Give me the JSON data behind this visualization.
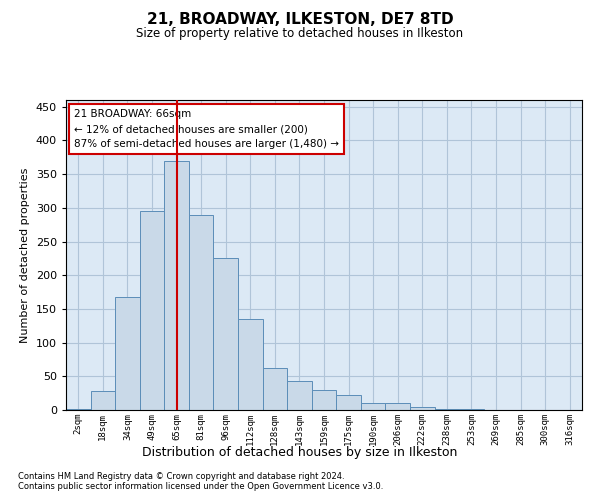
{
  "title1": "21, BROADWAY, ILKESTON, DE7 8TD",
  "title2": "Size of property relative to detached houses in Ilkeston",
  "xlabel": "Distribution of detached houses by size in Ilkeston",
  "ylabel": "Number of detached properties",
  "footnote1": "Contains HM Land Registry data © Crown copyright and database right 2024.",
  "footnote2": "Contains public sector information licensed under the Open Government Licence v3.0.",
  "annotation_title": "21 BROADWAY: 66sqm",
  "annotation_line1": "← 12% of detached houses are smaller (200)",
  "annotation_line2": "87% of semi-detached houses are larger (1,480) →",
  "bar_labels": [
    "2sqm",
    "18sqm",
    "34sqm",
    "49sqm",
    "65sqm",
    "81sqm",
    "96sqm",
    "112sqm",
    "128sqm",
    "143sqm",
    "159sqm",
    "175sqm",
    "190sqm",
    "206sqm",
    "222sqm",
    "238sqm",
    "253sqm",
    "269sqm",
    "285sqm",
    "300sqm",
    "316sqm"
  ],
  "bar_values": [
    2,
    28,
    168,
    295,
    370,
    290,
    225,
    135,
    62,
    43,
    30,
    22,
    10,
    11,
    5,
    2,
    1,
    0,
    0,
    0,
    0
  ],
  "bar_color": "#c9d9e8",
  "bar_edge_color": "#5b8db8",
  "grid_color": "#b0c4d8",
  "background_color": "#dce9f5",
  "red_line_index": 4,
  "annotation_box_color": "#ffffff",
  "annotation_border_color": "#cc0000",
  "ylim": [
    0,
    460
  ],
  "yticks": [
    0,
    50,
    100,
    150,
    200,
    250,
    300,
    350,
    400,
    450
  ]
}
